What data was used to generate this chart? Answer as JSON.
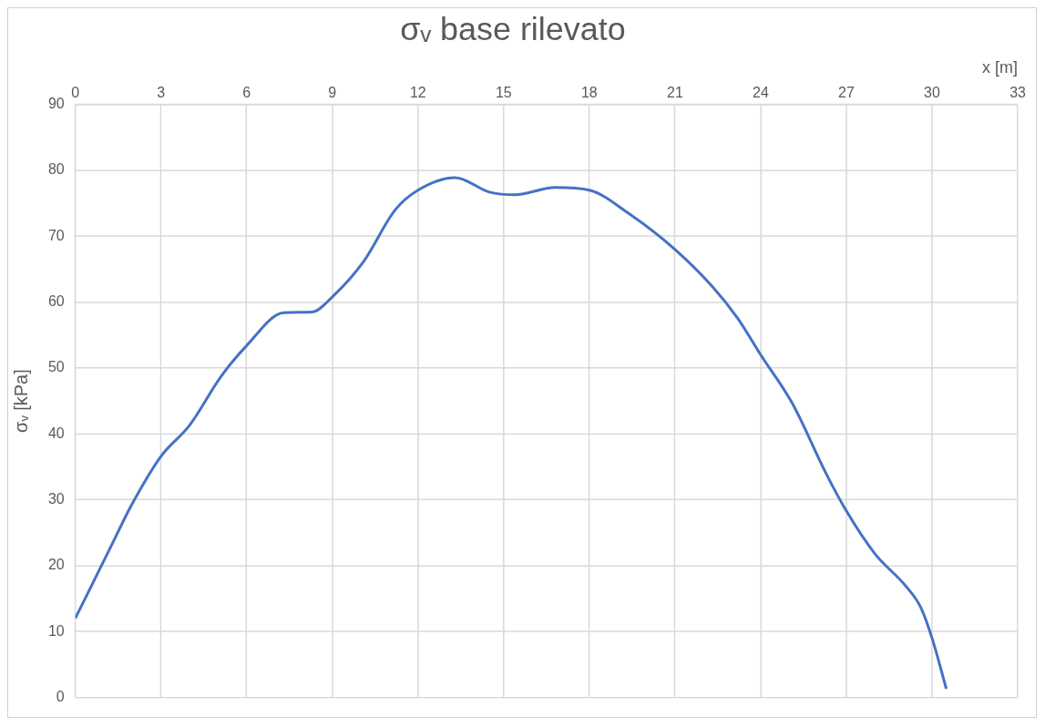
{
  "chart_data": {
    "type": "line",
    "title": "σᵥ base rilevato",
    "xlabel": "x [m]",
    "ylabel": "σᵥ [kPa]",
    "x": [
      0,
      1.27,
      1.97,
      3,
      4,
      5.1,
      6,
      7.3,
      8.3,
      9,
      10.1,
      11.2,
      12,
      13.3,
      14.5,
      15.4,
      16.8,
      18,
      19.4,
      21,
      22.3,
      23.2,
      24,
      25.1,
      26.3,
      27,
      28,
      29.1,
      29.6,
      30,
      30.5
    ],
    "series": [
      {
        "color": "#4472c4",
        "values": [
          12,
          23.1,
          29.2,
          36.6,
          41.3,
          48.7,
          53.4,
          58.4,
          58.5,
          60.8,
          66.2,
          74,
          77,
          78.9,
          76.7,
          76.3,
          77.4,
          77,
          73.4,
          68,
          62.4,
          57.5,
          52,
          44.7,
          33.9,
          28.3,
          21.8,
          16.8,
          13.7,
          9,
          1.3
        ]
      }
    ],
    "xlim": [
      0,
      33
    ],
    "xticks": [
      0,
      3,
      6,
      9,
      12,
      15,
      18,
      21,
      24,
      27,
      30,
      33
    ],
    "ylim": [
      0,
      90
    ],
    "yticks": [
      0,
      10,
      20,
      30,
      40,
      50,
      60,
      70,
      80,
      90
    ],
    "grid": true,
    "legend": false,
    "marker": "none",
    "line_style": "solid"
  }
}
